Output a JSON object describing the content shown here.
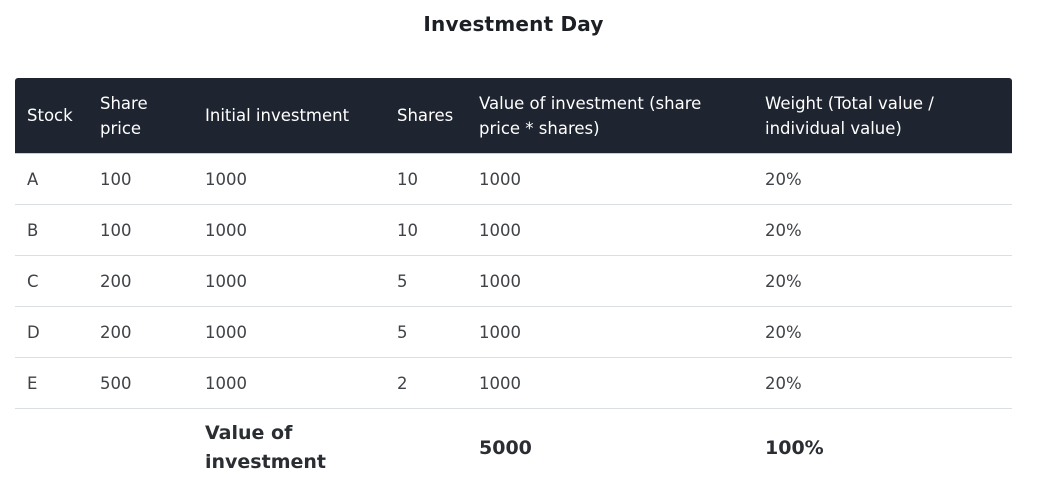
{
  "page": {
    "title": "Investment Day"
  },
  "table": {
    "headers": [
      "Stock",
      "Share price",
      "Initial investment",
      "Shares",
      "Value of investment (share price * shares)",
      "Weight (Total value / individual value)"
    ],
    "rows": [
      [
        "A",
        "100",
        "1000",
        "10",
        "1000",
        "20%"
      ],
      [
        "B",
        "100",
        "1000",
        "10",
        "1000",
        "20%"
      ],
      [
        "C",
        "200",
        "1000",
        "5",
        "1000",
        "20%"
      ],
      [
        "D",
        "200",
        "1000",
        "5",
        "1000",
        "20%"
      ],
      [
        "E",
        "500",
        "1000",
        "2",
        "1000",
        "20%"
      ]
    ],
    "total": {
      "label": "Value of investment",
      "value": "5000",
      "weight": "100%"
    }
  }
}
